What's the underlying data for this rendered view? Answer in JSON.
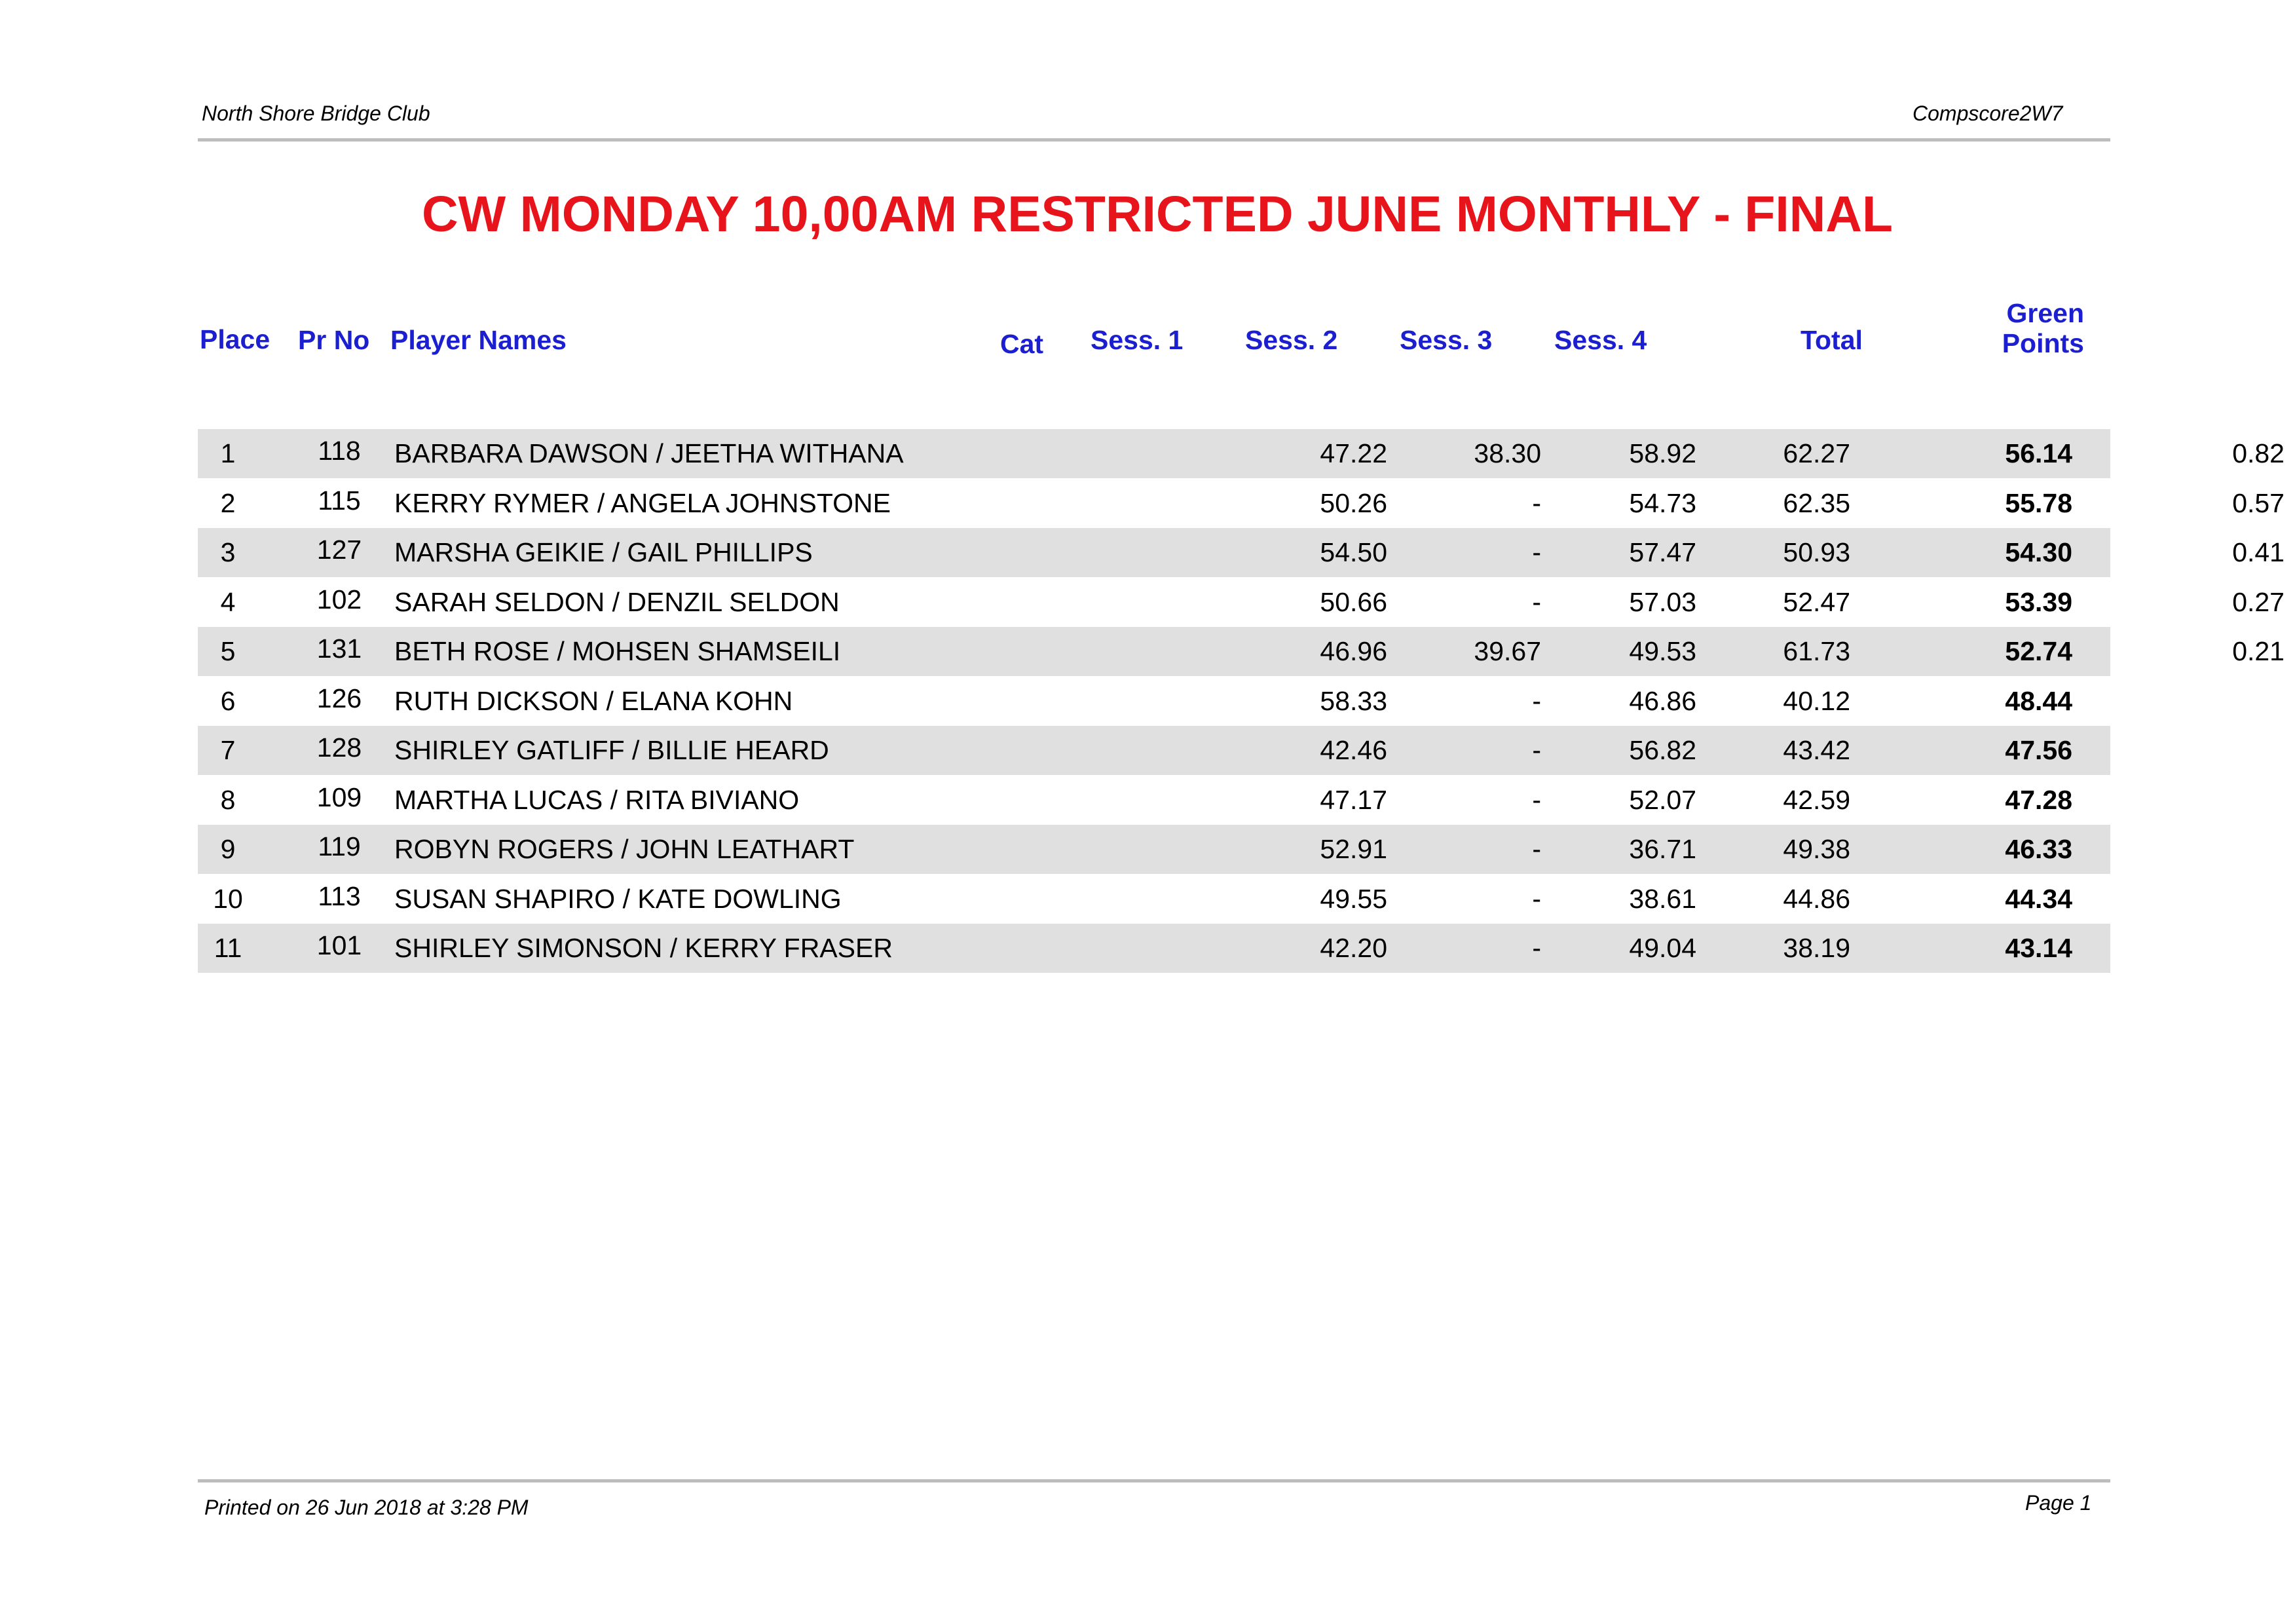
{
  "header": {
    "club": "North Shore Bridge Club",
    "program": "Compscore2W7"
  },
  "title": "CW MONDAY 10,00AM RESTRICTED JUNE MONTHLY - FINAL",
  "columns": {
    "place": "Place",
    "prno": "Pr No",
    "names": "Player Names",
    "cat": "Cat",
    "s1": "Sess. 1",
    "s2": "Sess. 2",
    "s3": "Sess. 3",
    "s4": "Sess. 4",
    "total": "Total",
    "green1": "Green",
    "green2": "Points"
  },
  "rows": [
    {
      "place": "1",
      "prno": "118",
      "names": "BARBARA DAWSON / JEETHA WITHANA",
      "s1": "47.22",
      "s2": "38.30",
      "s3": "58.92",
      "s4": "62.27",
      "total": "56.14",
      "green": "0.82"
    },
    {
      "place": "2",
      "prno": "115",
      "names": "KERRY RYMER / ANGELA JOHNSTONE",
      "s1": "50.26",
      "s2": "-",
      "s3": "54.73",
      "s4": "62.35",
      "total": "55.78",
      "green": "0.57"
    },
    {
      "place": "3",
      "prno": "127",
      "names": "MARSHA GEIKIE / GAIL PHILLIPS",
      "s1": "54.50",
      "s2": "-",
      "s3": "57.47",
      "s4": "50.93",
      "total": "54.30",
      "green": "0.41"
    },
    {
      "place": "4",
      "prno": "102",
      "names": "SARAH SELDON / DENZIL SELDON",
      "s1": "50.66",
      "s2": "-",
      "s3": "57.03",
      "s4": "52.47",
      "total": "53.39",
      "green": "0.27"
    },
    {
      "place": "5",
      "prno": "131",
      "names": "BETH ROSE / MOHSEN SHAMSEILI",
      "s1": "46.96",
      "s2": "39.67",
      "s3": "49.53",
      "s4": "61.73",
      "total": "52.74",
      "green": "0.21"
    },
    {
      "place": "6",
      "prno": "126",
      "names": "RUTH DICKSON / ELANA KOHN",
      "s1": "58.33",
      "s2": "-",
      "s3": "46.86",
      "s4": "40.12",
      "total": "48.44",
      "green": ""
    },
    {
      "place": "7",
      "prno": "128",
      "names": "SHIRLEY GATLIFF / BILLIE HEARD",
      "s1": "42.46",
      "s2": "-",
      "s3": "56.82",
      "s4": "43.42",
      "total": "47.56",
      "green": ""
    },
    {
      "place": "8",
      "prno": "109",
      "names": "MARTHA LUCAS / RITA BIVIANO",
      "s1": "47.17",
      "s2": "-",
      "s3": "52.07",
      "s4": "42.59",
      "total": "47.28",
      "green": ""
    },
    {
      "place": "9",
      "prno": "119",
      "names": "ROBYN ROGERS / JOHN LEATHART",
      "s1": "52.91",
      "s2": "-",
      "s3": "36.71",
      "s4": "49.38",
      "total": "46.33",
      "green": ""
    },
    {
      "place": "10",
      "prno": "113",
      "names": "SUSAN SHAPIRO / KATE DOWLING",
      "s1": "49.55",
      "s2": "-",
      "s3": "38.61",
      "s4": "44.86",
      "total": "44.34",
      "green": ""
    },
    {
      "place": "11",
      "prno": "101",
      "names": "SHIRLEY SIMONSON / KERRY FRASER",
      "s1": "42.20",
      "s2": "-",
      "s3": "49.04",
      "s4": "38.19",
      "total": "43.14",
      "green": ""
    }
  ],
  "footer": {
    "printed": "Printed on 26 Jun 2018 at 3:28 PM",
    "page": "Page 1"
  },
  "colors": {
    "title": "#e8141b",
    "header_text": "#1b1fd0",
    "row_shade": "#e0e0e0",
    "rule": "#bdbdbd"
  }
}
